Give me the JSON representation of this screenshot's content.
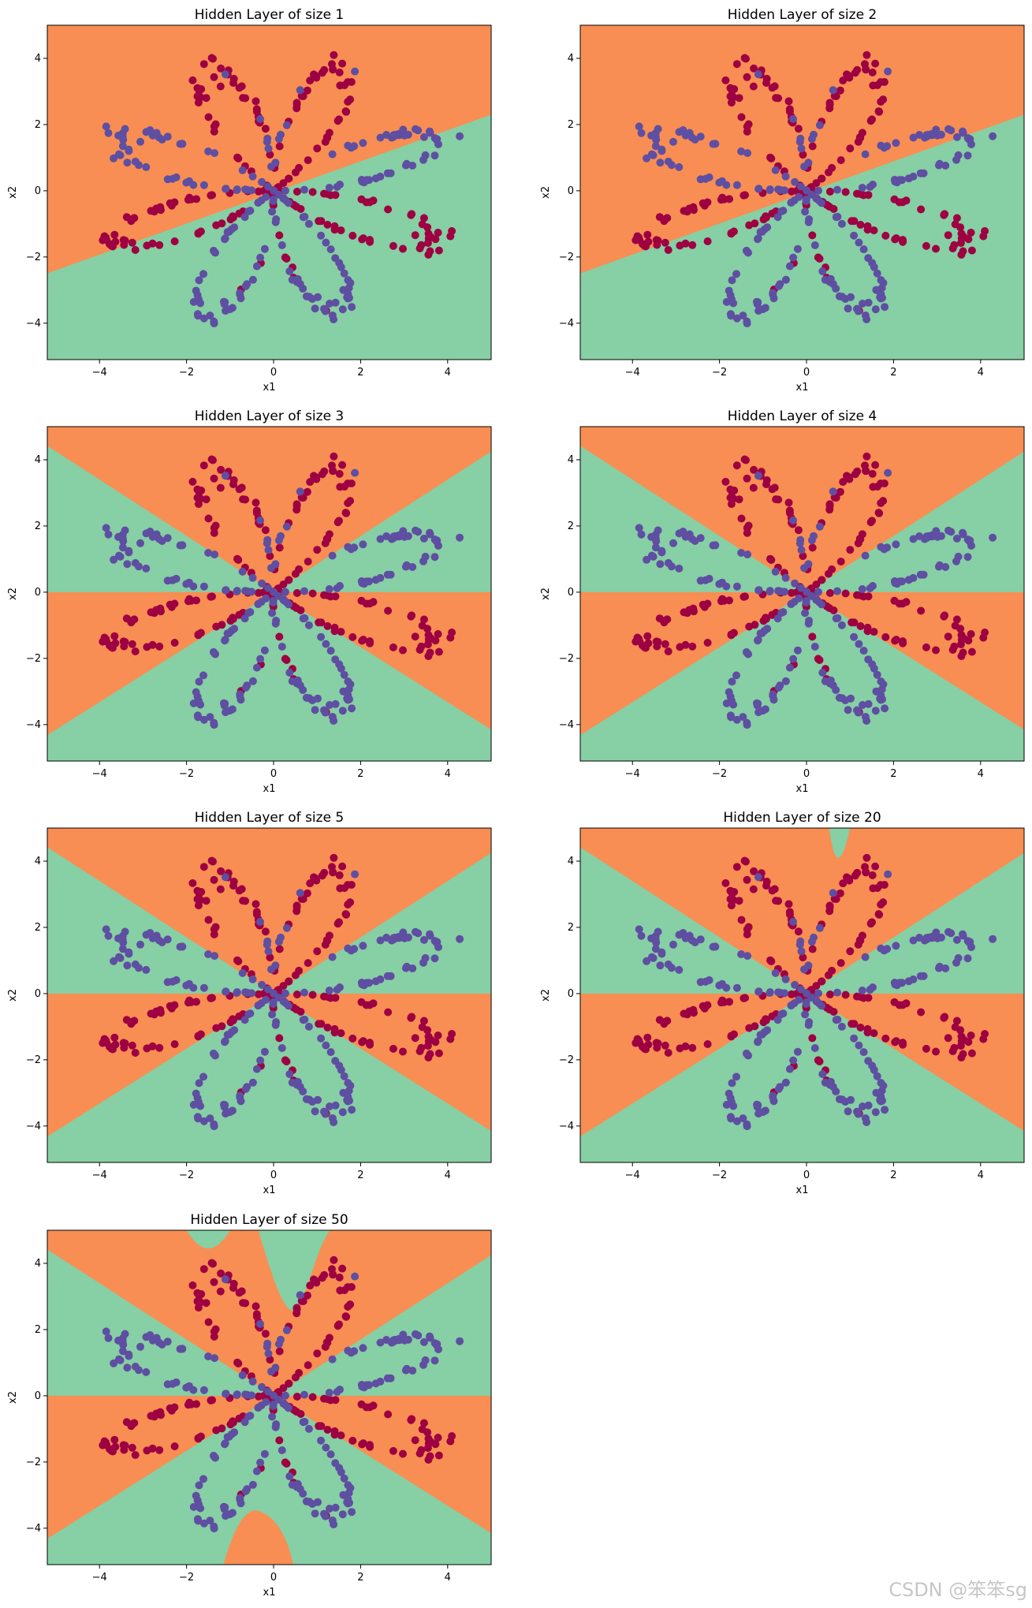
{
  "watermark": "CSDN @笨笨sg",
  "colors": {
    "orange_region": "#f88e53",
    "green_region": "#87cfa4",
    "red_points": "#9e0142",
    "blue_points": "#5e4fa2"
  },
  "chart_data": [
    {
      "type": "scatter",
      "title": "Hidden Layer of size 1",
      "xlabel": "x1",
      "ylabel": "x2",
      "xlim": [
        -5.2,
        5.0
      ],
      "ylim": [
        -5.1,
        5.0
      ],
      "xticks": [
        -4,
        -2,
        0,
        2,
        4
      ],
      "yticks": [
        -4,
        -2,
        0,
        2,
        4
      ],
      "hidden_units": 1,
      "decision": "one tilted line separating orange (upper-left) from green (lower-right)",
      "series": [
        {
          "name": "",
          "color": "#9e0142"
        },
        {
          "name": "",
          "color": "#5e4fa2"
        }
      ]
    },
    {
      "type": "scatter",
      "title": "Hidden Layer of size 2",
      "xlabel": "x1",
      "ylabel": "x2",
      "xlim": [
        -5.2,
        5.0
      ],
      "ylim": [
        -5.1,
        5.0
      ],
      "xticks": [
        -4,
        -2,
        0,
        2,
        4
      ],
      "yticks": [
        -4,
        -2,
        0,
        2,
        4
      ],
      "hidden_units": 2,
      "decision": "one tilted line separating orange (upper-left) from green (lower-right)",
      "series": [
        {
          "name": "",
          "color": "#9e0142"
        },
        {
          "name": "",
          "color": "#5e4fa2"
        }
      ]
    },
    {
      "type": "scatter",
      "title": "Hidden Layer of size 3",
      "xlabel": "x1",
      "ylabel": "x2",
      "xlim": [
        -5.2,
        5.0
      ],
      "ylim": [
        -5.1,
        5.0
      ],
      "xticks": [
        -4,
        -2,
        0,
        2,
        4
      ],
      "yticks": [
        -4,
        -2,
        0,
        2,
        4
      ],
      "hidden_units": 3,
      "decision": "three lines through origin forming alternating orange/green wedges",
      "series": [
        {
          "name": "",
          "color": "#9e0142"
        },
        {
          "name": "",
          "color": "#5e4fa2"
        }
      ]
    },
    {
      "type": "scatter",
      "title": "Hidden Layer of size 4",
      "xlabel": "x1",
      "ylabel": "x2",
      "xlim": [
        -5.2,
        5.0
      ],
      "ylim": [
        -5.1,
        5.0
      ],
      "xticks": [
        -4,
        -2,
        0,
        2,
        4
      ],
      "yticks": [
        -4,
        -2,
        0,
        2,
        4
      ],
      "hidden_units": 4,
      "decision": "three lines through origin forming alternating orange/green wedges",
      "series": [
        {
          "name": "",
          "color": "#9e0142"
        },
        {
          "name": "",
          "color": "#5e4fa2"
        }
      ]
    },
    {
      "type": "scatter",
      "title": "Hidden Layer of size 5",
      "xlabel": "x1",
      "ylabel": "x2",
      "xlim": [
        -5.2,
        5.0
      ],
      "ylim": [
        -5.1,
        5.0
      ],
      "xticks": [
        -4,
        -2,
        0,
        2,
        4
      ],
      "yticks": [
        -4,
        -2,
        0,
        2,
        4
      ],
      "hidden_units": 5,
      "decision": "three lines through origin forming alternating orange/green wedges",
      "series": [
        {
          "name": "",
          "color": "#9e0142"
        },
        {
          "name": "",
          "color": "#5e4fa2"
        }
      ]
    },
    {
      "type": "scatter",
      "title": "Hidden Layer of size 20",
      "xlabel": "x1",
      "ylabel": "x2",
      "xlim": [
        -5.2,
        5.0
      ],
      "ylim": [
        -5.1,
        5.0
      ],
      "xticks": [
        -4,
        -2,
        0,
        2,
        4
      ],
      "yticks": [
        -4,
        -2,
        0,
        2,
        4
      ],
      "hidden_units": 20,
      "decision": "wedges with a small green spike near the top",
      "series": [
        {
          "name": "",
          "color": "#9e0142"
        },
        {
          "name": "",
          "color": "#5e4fa2"
        }
      ]
    },
    {
      "type": "scatter",
      "title": "Hidden Layer of size 50",
      "xlabel": "x1",
      "ylabel": "x2",
      "xlim": [
        -5.2,
        5.0
      ],
      "ylim": [
        -5.1,
        5.0
      ],
      "xticks": [
        -4,
        -2,
        0,
        2,
        4
      ],
      "yticks": [
        -4,
        -2,
        0,
        2,
        4
      ],
      "hidden_units": 50,
      "decision": "wedges with irregular bulges at top and bottom (overfitting)",
      "series": [
        {
          "name": "",
          "color": "#9e0142"
        },
        {
          "name": "",
          "color": "#5e4fa2"
        }
      ]
    }
  ]
}
